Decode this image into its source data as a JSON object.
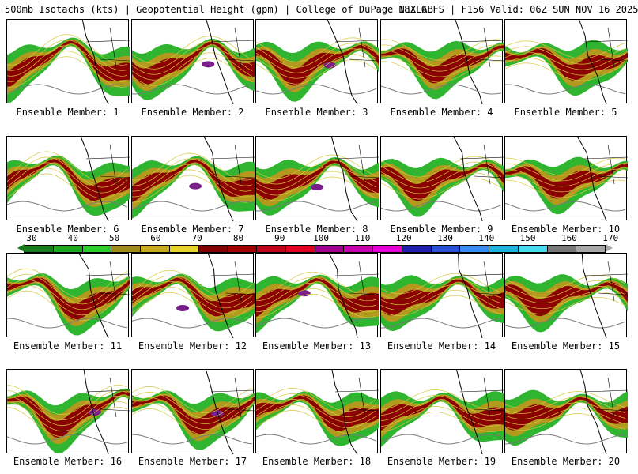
{
  "header": {
    "title": "500mb Isotachs (kts) | Geopotential Height (gpm) | College of DuPage NEXLAB",
    "run_info": "18Z GEFS | F156 Valid: 06Z SUN NOV 16 2025"
  },
  "colorbar": {
    "ticks": [
      "30",
      "40",
      "50",
      "60",
      "70",
      "80",
      "90",
      "100",
      "110",
      "120",
      "130",
      "140",
      "150",
      "160",
      "170"
    ],
    "colors": [
      "#1a7a1a",
      "#22a622",
      "#2ecc2e",
      "#a08a1e",
      "#c8aa1e",
      "#e6d228",
      "#800000",
      "#a00000",
      "#c00014",
      "#e0001e",
      "#a0008c",
      "#c800aa",
      "#e600d2",
      "#1e1eaa",
      "#2850d2",
      "#3c8cf0",
      "#1eb4dc",
      "#46dcf0",
      "#787878",
      "#a8a8a8"
    ]
  },
  "panels": [
    {
      "label": "Ensemble Member: 1"
    },
    {
      "label": "Ensemble Member: 2"
    },
    {
      "label": "Ensemble Member: 3"
    },
    {
      "label": "Ensemble Member: 4"
    },
    {
      "label": "Ensemble Member: 5"
    },
    {
      "label": "Ensemble Member: 6"
    },
    {
      "label": "Ensemble Member: 7"
    },
    {
      "label": "Ensemble Member: 8"
    },
    {
      "label": "Ensemble Member: 9"
    },
    {
      "label": "Ensemble Member: 10"
    },
    {
      "label": "Ensemble Member: 11"
    },
    {
      "label": "Ensemble Member: 12"
    },
    {
      "label": "Ensemble Member: 13"
    },
    {
      "label": "Ensemble Member: 14"
    },
    {
      "label": "Ensemble Member: 15"
    },
    {
      "label": "Ensemble Member: 16"
    },
    {
      "label": "Ensemble Member: 17"
    },
    {
      "label": "Ensemble Member: 18"
    },
    {
      "label": "Ensemble Member: 19"
    },
    {
      "label": "Ensemble Member: 20"
    }
  ]
}
